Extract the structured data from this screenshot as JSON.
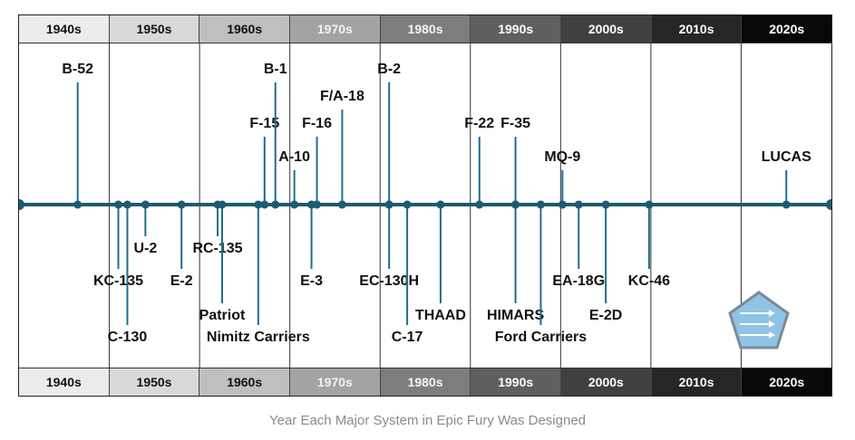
{
  "caption": "Year Each Major System in Epic Fury Was Designed",
  "decades": [
    {
      "label": "1940s",
      "bg": "#ececec",
      "fg": "#111111"
    },
    {
      "label": "1950s",
      "bg": "#d9d9d9",
      "fg": "#111111"
    },
    {
      "label": "1960s",
      "bg": "#bfbfbf",
      "fg": "#111111"
    },
    {
      "label": "1970s",
      "bg": "#a3a3a3",
      "fg": "#f2f2f2"
    },
    {
      "label": "1980s",
      "bg": "#7d7d7d",
      "fg": "#f5f5f5"
    },
    {
      "label": "1990s",
      "bg": "#5f5f5f",
      "fg": "#ffffff"
    },
    {
      "label": "2000s",
      "bg": "#404040",
      "fg": "#ffffff"
    },
    {
      "label": "2010s",
      "bg": "#262626",
      "fg": "#ffffff"
    },
    {
      "label": "2020s",
      "bg": "#080808",
      "fg": "#ffffff"
    }
  ],
  "timeline": {
    "start_year": 1940,
    "end_year": 2030,
    "axis_color": "#1d5a73",
    "line_color": "#1f6e8c",
    "divider_color": "#333333",
    "systems": [
      {
        "name": "B-52",
        "year": 1946.5,
        "side": "above",
        "tier": 1
      },
      {
        "name": "KC-135",
        "year": 1951,
        "side": "below",
        "tier": 3
      },
      {
        "name": "C-130",
        "year": 1952,
        "side": "below",
        "tier": 5
      },
      {
        "name": "U-2",
        "year": 1954,
        "side": "below",
        "tier": 1
      },
      {
        "name": "E-2",
        "year": 1958,
        "side": "below",
        "tier": 3
      },
      {
        "name": "RC-135",
        "year": 1962,
        "side": "below",
        "tier": 2
      },
      {
        "name": "Patriot",
        "year": 1962.5,
        "side": "below",
        "tier": 4
      },
      {
        "name": "Nimitz Carriers",
        "year": 1966.5,
        "side": "below",
        "tier": 5
      },
      {
        "name": "F-15",
        "year": 1967.2,
        "side": "above",
        "tier": 4
      },
      {
        "name": "B-1",
        "year": 1968.4,
        "side": "above",
        "tier": 1
      },
      {
        "name": "A-10",
        "year": 1970.5,
        "side": "above",
        "tier": 5
      },
      {
        "name": "E-3",
        "year": 1972.4,
        "side": "below",
        "tier": 3
      },
      {
        "name": "F-16",
        "year": 1973,
        "side": "above",
        "tier": 4
      },
      {
        "name": "F/A-18",
        "year": 1975.8,
        "side": "above",
        "tier": 3
      },
      {
        "name": "B-2",
        "year": 1981,
        "side": "above",
        "tier": 1
      },
      {
        "name": "EC-130H",
        "year": 1981,
        "side": "below",
        "tier": 3
      },
      {
        "name": "C-17",
        "year": 1983,
        "side": "below",
        "tier": 5
      },
      {
        "name": "THAAD",
        "year": 1986.7,
        "side": "below",
        "tier": 4
      },
      {
        "name": "F-22",
        "year": 1991,
        "side": "above",
        "tier": 4
      },
      {
        "name": "F-35",
        "year": 1995,
        "side": "above",
        "tier": 4
      },
      {
        "name": "HIMARS",
        "year": 1995,
        "side": "below",
        "tier": 4
      },
      {
        "name": "Ford Carriers",
        "year": 1997.8,
        "side": "below",
        "tier": 5
      },
      {
        "name": "MQ-9",
        "year": 2000.2,
        "side": "above",
        "tier": 5
      },
      {
        "name": "EA-18G",
        "year": 2002,
        "side": "below",
        "tier": 3
      },
      {
        "name": "E-2D",
        "year": 2005,
        "side": "below",
        "tier": 4
      },
      {
        "name": "KC-46",
        "year": 2009.8,
        "side": "below",
        "tier": 3
      },
      {
        "name": "LUCAS",
        "year": 2025,
        "side": "above",
        "tier": 5
      }
    ]
  }
}
